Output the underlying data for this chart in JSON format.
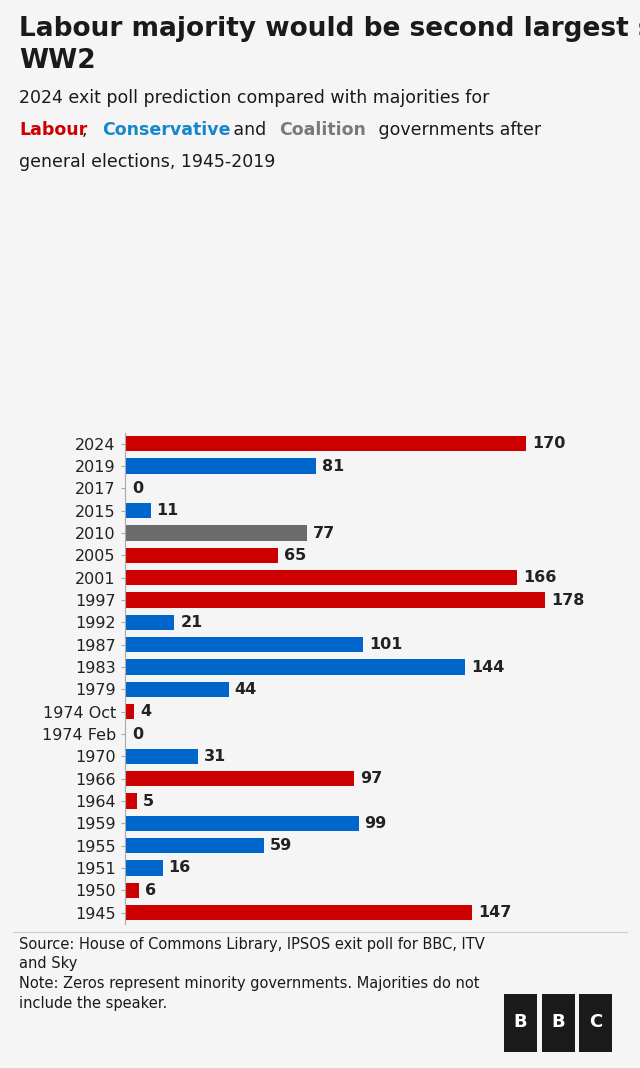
{
  "title_line1": "Labour majority would be second largest since",
  "title_line2": "WW2",
  "years": [
    "2024",
    "2019",
    "2017",
    "2015",
    "2010",
    "2005",
    "2001",
    "1997",
    "1992",
    "1987",
    "1983",
    "1979",
    "1974 Oct",
    "1974 Feb",
    "1970",
    "1966",
    "1964",
    "1959",
    "1955",
    "1951",
    "1950",
    "1945"
  ],
  "values": [
    170,
    81,
    0,
    11,
    77,
    65,
    166,
    178,
    21,
    101,
    144,
    44,
    4,
    0,
    31,
    97,
    5,
    99,
    59,
    16,
    6,
    147
  ],
  "colors": [
    "#cc0000",
    "#0066cc",
    "#f5f5f5",
    "#0066cc",
    "#6b6b6b",
    "#cc0000",
    "#cc0000",
    "#cc0000",
    "#0066cc",
    "#0066cc",
    "#0066cc",
    "#0066cc",
    "#cc0000",
    "#f5f5f5",
    "#0066cc",
    "#cc0000",
    "#cc0000",
    "#0066cc",
    "#0066cc",
    "#0066cc",
    "#cc0000",
    "#cc0000"
  ],
  "background_color": "#f5f5f5",
  "source_text": "Source: House of Commons Library, IPSOS exit poll for BBC, ITV\nand Sky\nNote: Zeros represent minority governments. Majorities do not\ninclude the speaker.",
  "value_label_color": "#222222",
  "title_fontsize": 19,
  "subtitle_fontsize": 12.5,
  "bar_label_fontsize": 11.5,
  "ytick_fontsize": 11.5,
  "source_fontsize": 10.5,
  "zero_bar_min": 0.8,
  "xlim_max": 210
}
